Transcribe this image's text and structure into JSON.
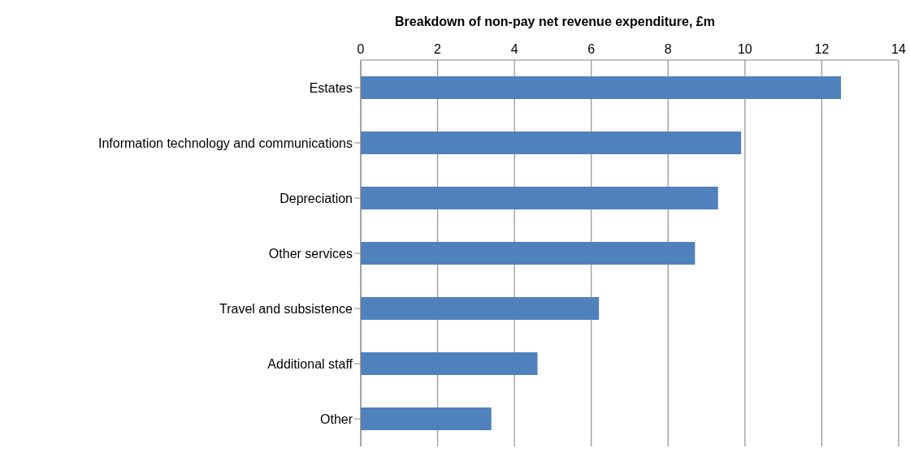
{
  "chart_data": {
    "type": "bar",
    "orientation": "horizontal",
    "title": "Breakdown of non-pay net revenue expenditure, £m",
    "categories": [
      "Estates",
      "Information technology and communications",
      "Depreciation",
      "Other services",
      "Travel and subsistence",
      "Additional staff",
      "Other"
    ],
    "values": [
      12.5,
      9.9,
      9.3,
      8.7,
      6.2,
      4.6,
      3.4
    ],
    "color": "#4f81bd",
    "xlim": [
      0,
      14
    ],
    "xticks": [
      0,
      2,
      4,
      6,
      8,
      10,
      12,
      14
    ],
    "grid": "x"
  }
}
